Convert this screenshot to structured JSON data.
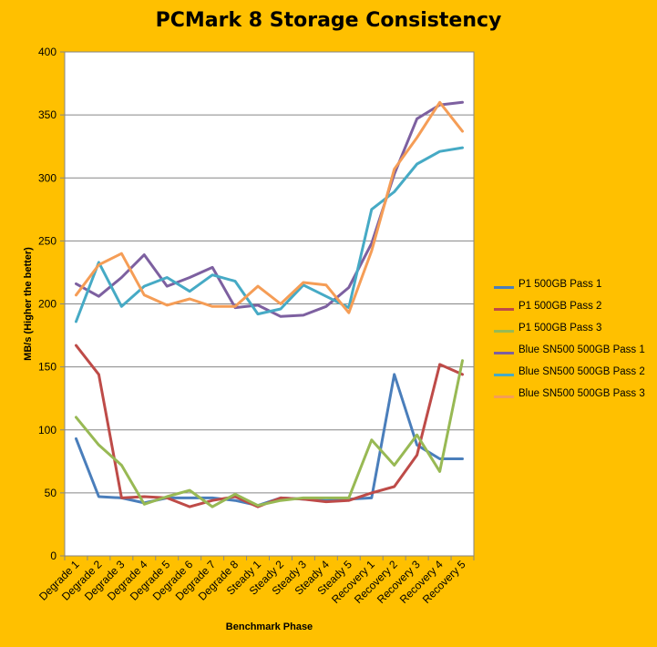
{
  "chart_data": {
    "type": "line",
    "title": "PCMark 8 Storage Consistency",
    "xlabel": "Benchmark Phase",
    "ylabel": "MB/s (Higher the better)",
    "ylim": [
      0,
      400
    ],
    "yticks": [
      0,
      50,
      100,
      150,
      200,
      250,
      300,
      350,
      400
    ],
    "grid": "horizontal",
    "legend_position": "right",
    "categories": [
      "Degrade 1",
      "Degrade 2",
      "Degrade 3",
      "Degrade 4",
      "Degrade 5",
      "Degrade 6",
      "Degrade 7",
      "Degrade 8",
      "Steady 1",
      "Steady 2",
      "Steady 3",
      "Steady 4",
      "Steady 5",
      "Recovery 1",
      "Recovery 2",
      "Recovery 3",
      "Recovery 4",
      "Recovery 5"
    ],
    "series": [
      {
        "name": "P1 500GB Pass 1",
        "color": "#4A7EBB",
        "values": [
          93,
          47,
          46,
          42,
          46,
          46,
          46,
          44,
          40,
          46,
          45,
          44,
          45,
          46,
          144,
          88,
          77,
          77
        ]
      },
      {
        "name": "P1 500GB Pass 2",
        "color": "#BE4B48",
        "values": [
          167,
          144,
          46,
          47,
          46,
          39,
          44,
          47,
          39,
          46,
          45,
          43,
          44,
          50,
          55,
          80,
          152,
          144
        ]
      },
      {
        "name": "P1 500GB Pass 3",
        "color": "#98B954",
        "values": [
          110,
          88,
          72,
          41,
          47,
          52,
          39,
          49,
          40,
          44,
          46,
          46,
          46,
          92,
          72,
          96,
          67,
          155
        ]
      },
      {
        "name": "Blue SN500 500GB Pass 1",
        "color": "#7D60A0",
        "values": [
          216,
          206,
          221,
          239,
          214,
          221,
          229,
          197,
          199,
          190,
          191,
          198,
          213,
          248,
          303,
          347,
          358,
          360
        ]
      },
      {
        "name": "Blue SN500 500GB Pass 2",
        "color": "#46AAC5",
        "values": [
          186,
          233,
          198,
          214,
          221,
          210,
          223,
          218,
          192,
          196,
          215,
          206,
          197,
          275,
          289,
          311,
          321,
          324
        ]
      },
      {
        "name": "Blue SN500 500GB Pass 3",
        "color": "#F59D56",
        "values": [
          207,
          231,
          240,
          207,
          199,
          204,
          198,
          198,
          214,
          200,
          217,
          215,
          193,
          242,
          307,
          332,
          360,
          337
        ]
      }
    ]
  }
}
